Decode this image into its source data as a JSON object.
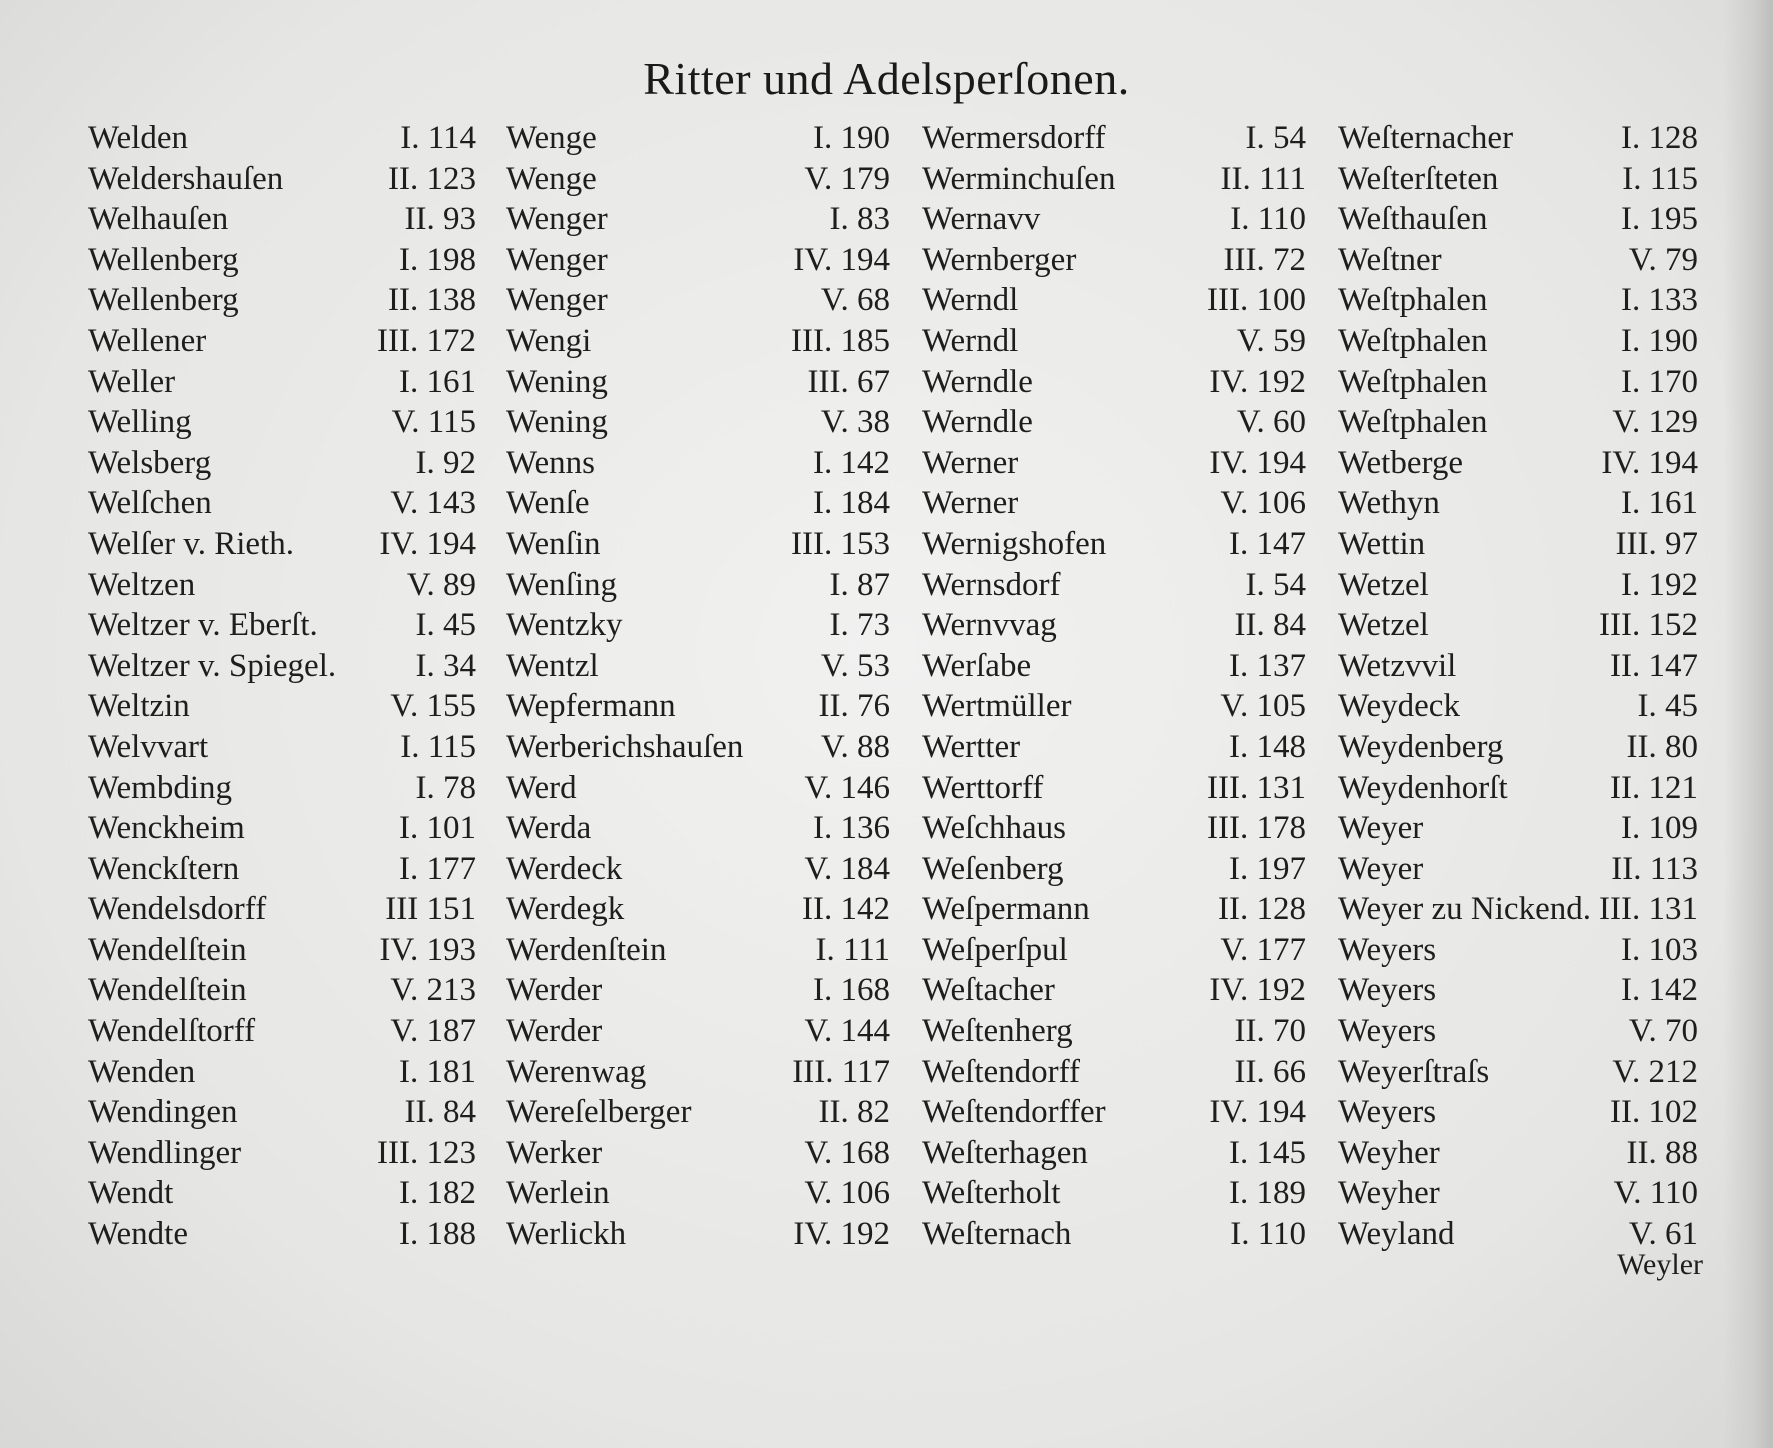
{
  "title": "Ritter und Adelsperſonen.",
  "columns": [
    [
      [
        "Welden",
        "I. 114"
      ],
      [
        "Weldershauſen",
        "II. 123"
      ],
      [
        "Welhauſen",
        "II. 93"
      ],
      [
        "Wellenberg",
        "I. 198"
      ],
      [
        "Wellenberg",
        "II. 138"
      ],
      [
        "Wellener",
        "III. 172"
      ],
      [
        "Weller",
        "I. 161"
      ],
      [
        "Welling",
        "V. 115"
      ],
      [
        "Welsberg",
        "I. 92"
      ],
      [
        "Welſchen",
        "V. 143"
      ],
      [
        "Welſer v. Rieth.",
        "IV. 194"
      ],
      [
        "Weltzen",
        "V. 89"
      ],
      [
        "Weltzer v. Eberſt.",
        "I. 45"
      ],
      [
        "Weltzer v. Spiegel.",
        "I. 34"
      ],
      [
        "Weltzin",
        "V. 155"
      ],
      [
        "Welvvart",
        "I. 115"
      ],
      [
        "Wembding",
        "I. 78"
      ],
      [
        "Wenckheim",
        "I. 101"
      ],
      [
        "Wenckſtern",
        "I. 177"
      ],
      [
        "Wendelsdorff",
        "III 151"
      ],
      [
        "Wendelſtein",
        "IV. 193"
      ],
      [
        "Wendelſtein",
        "V. 213"
      ],
      [
        "Wendelſtorff",
        "V. 187"
      ],
      [
        "Wenden",
        "I. 181"
      ],
      [
        "Wendingen",
        "II. 84"
      ],
      [
        "Wendlinger",
        "III. 123"
      ],
      [
        "Wendt",
        "I. 182"
      ],
      [
        "Wendte",
        "I. 188"
      ]
    ],
    [
      [
        "Wenge",
        "I. 190"
      ],
      [
        "Wenge",
        "V. 179"
      ],
      [
        "Wenger",
        "I. 83"
      ],
      [
        "Wenger",
        "IV. 194"
      ],
      [
        "Wenger",
        "V. 68"
      ],
      [
        "Wengi",
        "III. 185"
      ],
      [
        "Wening",
        "III. 67"
      ],
      [
        "Wening",
        "V. 38"
      ],
      [
        "Wenns",
        "I. 142"
      ],
      [
        "Wenſe",
        "I. 184"
      ],
      [
        "Wenſin",
        "III. 153"
      ],
      [
        "Wenſing",
        "I. 87"
      ],
      [
        "Wentzky",
        "I. 73"
      ],
      [
        "Wentzl",
        "V. 53"
      ],
      [
        "Wepfermann",
        "II. 76"
      ],
      [
        "Werberichshauſen",
        "V. 88"
      ],
      [
        "Werd",
        "V. 146"
      ],
      [
        "Werda",
        "I. 136"
      ],
      [
        "Werdeck",
        "V. 184"
      ],
      [
        "Werdegk",
        "II. 142"
      ],
      [
        "Werdenſtein",
        "I. 111"
      ],
      [
        "Werder",
        "I. 168"
      ],
      [
        "Werder",
        "V. 144"
      ],
      [
        "Werenwag",
        "III. 117"
      ],
      [
        "Wereſelberger",
        "II. 82"
      ],
      [
        "Werker",
        "V. 168"
      ],
      [
        "Werlein",
        "V. 106"
      ],
      [
        "Werlickh",
        "IV. 192"
      ]
    ],
    [
      [
        "Wermersdorff",
        "I. 54"
      ],
      [
        "Werminchuſen",
        "II. 111"
      ],
      [
        "Wernavv",
        "I. 110"
      ],
      [
        "Wernberger",
        "III. 72"
      ],
      [
        "Werndl",
        "III. 100"
      ],
      [
        "Werndl",
        "V. 59"
      ],
      [
        "Werndle",
        "IV. 192"
      ],
      [
        "Werndle",
        "V. 60"
      ],
      [
        "Werner",
        "IV. 194"
      ],
      [
        "Werner",
        "V. 106"
      ],
      [
        "Wernigshofen",
        "I. 147"
      ],
      [
        "Wernsdorf",
        "I. 54"
      ],
      [
        "Wernvvag",
        "II. 84"
      ],
      [
        "Werſabe",
        "I. 137"
      ],
      [
        "Wertmüller",
        "V. 105"
      ],
      [
        "Wertter",
        "I. 148"
      ],
      [
        "Werttorff",
        "III. 131"
      ],
      [
        "Weſchhaus",
        "III. 178"
      ],
      [
        "Weſenberg",
        "I. 197"
      ],
      [
        "Weſpermann",
        "II. 128"
      ],
      [
        "Weſperſpul",
        "V. 177"
      ],
      [
        "Weſtacher",
        "IV. 192"
      ],
      [
        "Weſtenherg",
        "II. 70"
      ],
      [
        "Weſtendorff",
        "II. 66"
      ],
      [
        "Weſtendorffer",
        "IV. 194"
      ],
      [
        "Weſterhagen",
        "I. 145"
      ],
      [
        "Weſterholt",
        "I. 189"
      ],
      [
        "Weſternach",
        "I. 110"
      ]
    ],
    [
      [
        "Weſternacher",
        "I. 128"
      ],
      [
        "Weſterſteten",
        "I. 115"
      ],
      [
        "Weſthauſen",
        "I. 195"
      ],
      [
        "Weſtner",
        "V. 79"
      ],
      [
        "Weſtphalen",
        "I. 133"
      ],
      [
        "Weſtphalen",
        "I. 190"
      ],
      [
        "Weſtphalen",
        "I. 170"
      ],
      [
        "Weſtphalen",
        "V. 129"
      ],
      [
        "Wetberge",
        "IV. 194"
      ],
      [
        "Wethyn",
        "I. 161"
      ],
      [
        "Wettin",
        "III. 97"
      ],
      [
        "Wetzel",
        "I. 192"
      ],
      [
        "Wetzel",
        "III. 152"
      ],
      [
        "Wetzvvil",
        "II. 147"
      ],
      [
        "Weydeck",
        "I. 45"
      ],
      [
        "Weydenberg",
        "II. 80"
      ],
      [
        "Weydenhorſt",
        "II. 121"
      ],
      [
        "Weyer",
        "I. 109"
      ],
      [
        "Weyer",
        "II. 113"
      ],
      [
        "Weyer zu Nickend.",
        "III. 131"
      ],
      [
        "Weyers",
        "I. 103"
      ],
      [
        "Weyers",
        "I. 142"
      ],
      [
        "Weyers",
        "V. 70"
      ],
      [
        "Weyerſtraſs",
        "V. 212"
      ],
      [
        "Weyers",
        "II. 102"
      ],
      [
        "Weyher",
        "II. 88"
      ],
      [
        "Weyher",
        "V. 110"
      ],
      [
        "Weyland",
        "V. 61"
      ]
    ]
  ],
  "catchword": "Weyler"
}
